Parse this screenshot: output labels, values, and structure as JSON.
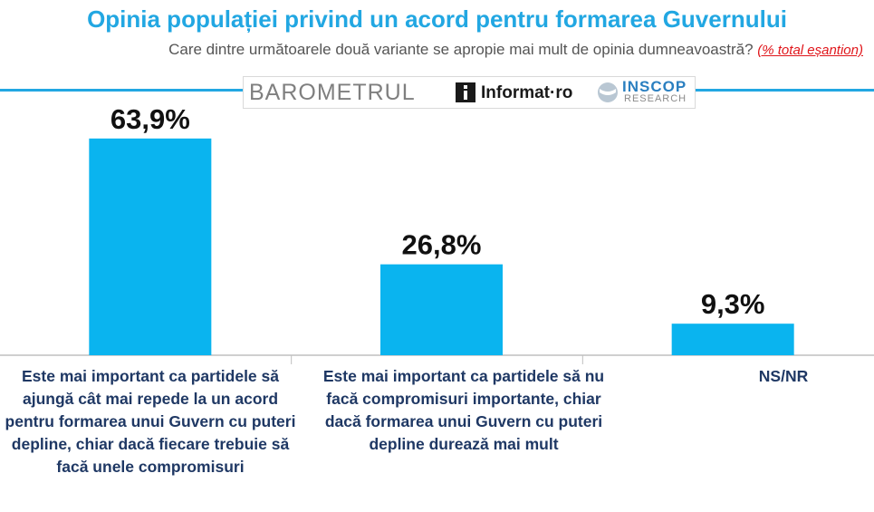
{
  "title": "Opinia populației privind un acord pentru formarea Guvernului",
  "subtitle": "Care dintre următoarele două variante se apropie mai mult de opinia dumneavoastră?",
  "subtitle_note": "(% total eșantion)",
  "logos": {
    "barometrul": "BAROMETRUL",
    "informat": "Informat·ro",
    "inscop": "INSCOP",
    "research": "RESEARCH"
  },
  "colors": {
    "bar": "#0ab4ef",
    "title": "#22a7e2",
    "category": "#1f3864",
    "note": "#e0161b"
  },
  "chart_data": {
    "type": "bar",
    "categories": [
      "Este mai important ca partidele să ajungă cât mai repede la un acord pentru formarea unui Guvern cu puteri depline, chiar dacă fiecare trebuie să facă unele compromisuri",
      "Este mai important ca partidele să nu facă compromisuri importante, chiar dacă formarea unui Guvern cu puteri depline durează mai mult",
      "NS/NR"
    ],
    "values": [
      63.9,
      26.8,
      9.3
    ],
    "value_labels": [
      "63,9%",
      "26,8%",
      "9,3%"
    ],
    "ylim": [
      0,
      70
    ],
    "grid": false,
    "legend": "none"
  }
}
